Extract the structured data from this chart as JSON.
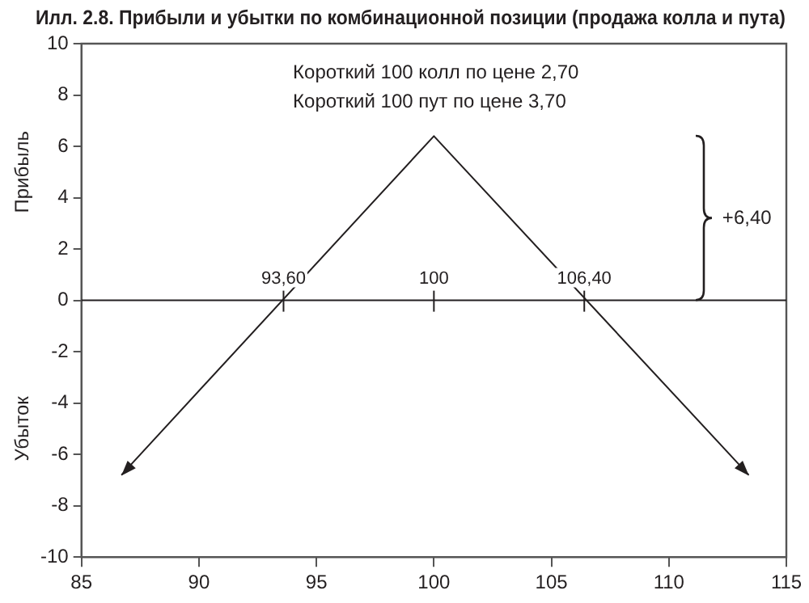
{
  "chart_data": {
    "type": "line",
    "title": "Илл. 2.8. Прибыли и убытки по комбинационной позиции (продажа колла и пута)",
    "ylabel": "Прибыль",
    "x": [
      86.7,
      100,
      113.4
    ],
    "series": [
      {
        "color": "#231f20",
        "values": [
          -6.8,
          6.4,
          -6.8
        ]
      }
    ],
    "xlim": [
      85,
      115
    ],
    "xticks": [
      85,
      90,
      95,
      100,
      105,
      110,
      115
    ],
    "ylim": [
      -10,
      10
    ],
    "yticks": [
      -10,
      -8,
      -6,
      -4,
      -2,
      0,
      2,
      4,
      6,
      8,
      10
    ],
    "grid": false,
    "legend": false,
    "marker": "none",
    "line_style": "solid",
    "ref_lines": [
      {
        "axis": "y",
        "value": 0,
        "color": "#231f20"
      }
    ],
    "annotations": [
      "Короткий 100 колл по цене 2,70",
      "Короткий 100 пут по цене 3,70",
      "+6,40",
      "Убыток",
      {
        "text": "93,60",
        "x": 93.6,
        "y": 0
      },
      {
        "text": "100",
        "x": 100,
        "y": 0
      },
      {
        "text": "106,40",
        "x": 106.4,
        "y": 0
      }
    ]
  }
}
